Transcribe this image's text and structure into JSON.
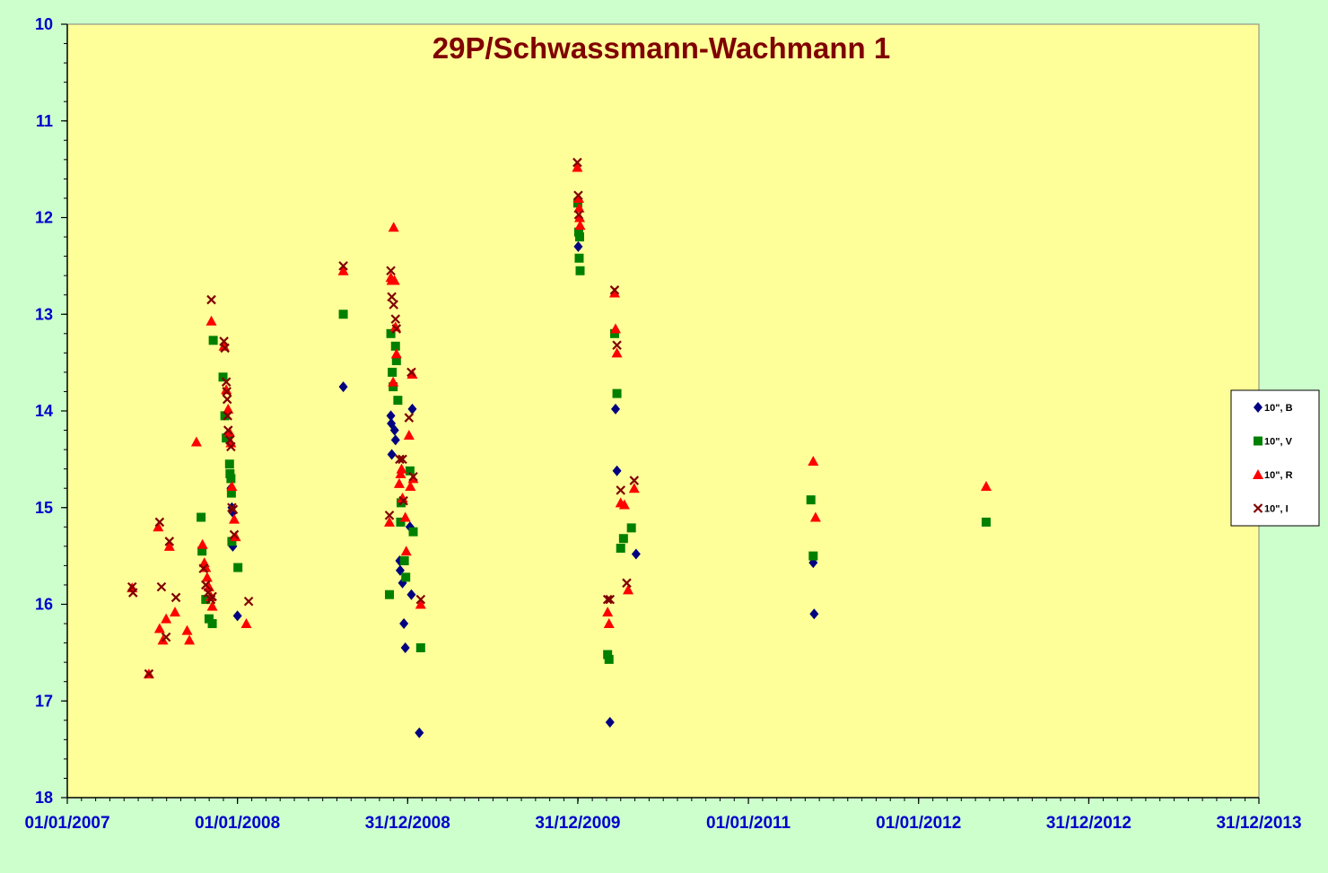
{
  "chart_data": {
    "type": "scatter",
    "title": "29P/Schwassmann-Wachmann 1",
    "xlabel": "",
    "ylabel": "",
    "x_axis": {
      "type": "date",
      "min": "2007-01-01",
      "max": "2013-12-31",
      "tick_labels": [
        "01/01/2007",
        "01/01/2008",
        "31/12/2008",
        "31/12/2009",
        "01/01/2011",
        "01/01/2012",
        "31/12/2012",
        "31/12/2013"
      ],
      "tick_dates": [
        "2007-01-01",
        "2008-01-01",
        "2008-12-31",
        "2009-12-31",
        "2011-01-01",
        "2012-01-01",
        "2012-12-31",
        "2013-12-31"
      ]
    },
    "y_axis": {
      "min": 10,
      "max": 18,
      "reversed": true,
      "tick_labels": [
        "10",
        "11",
        "12",
        "13",
        "14",
        "15",
        "16",
        "17",
        "18"
      ]
    },
    "grid": false,
    "legend_position": "right",
    "colors": {
      "page_background": "#ccffcc",
      "plot_background": "#ffff99",
      "title": "#800000",
      "tick_labels": "#0000cc"
    },
    "series": [
      {
        "name": "10\", B",
        "marker": "diamond",
        "color": "#000080",
        "points": [
          [
            "2007-12-22",
            15.4
          ],
          [
            "2008-01-01",
            16.12
          ],
          [
            "2007-12-16",
            14.25
          ],
          [
            "2007-12-18",
            14.8
          ],
          [
            "2007-12-20",
            15.0
          ],
          [
            "2007-12-22",
            15.05
          ],
          [
            "2008-08-15",
            13.75
          ],
          [
            "2008-11-25",
            14.05
          ],
          [
            "2008-11-26",
            14.13
          ],
          [
            "2008-11-27",
            14.45
          ],
          [
            "2008-12-03",
            14.2
          ],
          [
            "2008-12-05",
            14.3
          ],
          [
            "2008-12-14",
            15.55
          ],
          [
            "2008-12-15",
            15.65
          ],
          [
            "2008-12-20",
            15.78
          ],
          [
            "2008-12-23",
            16.2
          ],
          [
            "2008-12-26",
            16.45
          ],
          [
            "2009-01-05",
            15.2
          ],
          [
            "2009-01-08",
            15.9
          ],
          [
            "2009-01-10",
            13.98
          ],
          [
            "2009-01-25",
            17.33
          ],
          [
            "2010-01-01",
            12.3
          ],
          [
            "2010-03-10",
            17.22
          ],
          [
            "2010-03-22",
            13.98
          ],
          [
            "2010-03-25",
            14.62
          ],
          [
            "2010-05-05",
            15.48
          ],
          [
            "2011-05-20",
            15.57
          ],
          [
            "2011-05-22",
            16.1
          ]
        ]
      },
      {
        "name": "10\", V",
        "marker": "square",
        "color": "#008000",
        "points": [
          [
            "2007-10-15",
            15.1
          ],
          [
            "2007-10-17",
            15.45
          ],
          [
            "2007-10-25",
            15.95
          ],
          [
            "2007-11-01",
            16.15
          ],
          [
            "2007-11-08",
            16.2
          ],
          [
            "2007-11-10",
            13.27
          ],
          [
            "2007-12-01",
            13.65
          ],
          [
            "2007-12-05",
            14.05
          ],
          [
            "2007-12-08",
            14.28
          ],
          [
            "2007-12-15",
            14.55
          ],
          [
            "2007-12-16",
            14.65
          ],
          [
            "2007-12-18",
            14.7
          ],
          [
            "2007-12-19",
            14.85
          ],
          [
            "2007-12-20",
            15.35
          ],
          [
            "2008-01-02",
            15.62
          ],
          [
            "2008-08-15",
            13.0
          ],
          [
            "2008-11-25",
            13.2
          ],
          [
            "2008-11-28",
            13.6
          ],
          [
            "2008-11-30",
            13.75
          ],
          [
            "2008-12-05",
            13.33
          ],
          [
            "2008-12-07",
            13.48
          ],
          [
            "2008-12-10",
            13.89
          ],
          [
            "2008-11-22",
            15.9
          ],
          [
            "2008-12-16",
            15.15
          ],
          [
            "2008-12-17",
            14.95
          ],
          [
            "2008-12-24",
            15.55
          ],
          [
            "2008-12-27",
            15.72
          ],
          [
            "2009-01-05",
            14.62
          ],
          [
            "2009-01-12",
            15.25
          ],
          [
            "2009-01-28",
            16.45
          ],
          [
            "2009-12-31",
            11.85
          ],
          [
            "2010-01-02",
            12.15
          ],
          [
            "2010-01-04",
            12.2
          ],
          [
            "2010-01-03",
            12.42
          ],
          [
            "2010-01-05",
            12.55
          ],
          [
            "2010-03-05",
            16.52
          ],
          [
            "2010-03-08",
            16.57
          ],
          [
            "2010-03-20",
            13.2
          ],
          [
            "2010-03-25",
            13.82
          ],
          [
            "2010-04-02",
            15.42
          ],
          [
            "2010-04-08",
            15.32
          ],
          [
            "2010-04-25",
            15.21
          ],
          [
            "2011-05-15",
            14.92
          ],
          [
            "2011-05-20",
            15.5
          ],
          [
            "2012-05-25",
            15.15
          ]
        ]
      },
      {
        "name": "10\", R",
        "marker": "triangle",
        "color": "#ff0000",
        "points": [
          [
            "2007-05-20",
            15.83
          ],
          [
            "2007-06-25",
            16.72
          ],
          [
            "2007-07-15",
            15.2
          ],
          [
            "2007-07-18",
            16.25
          ],
          [
            "2007-07-25",
            16.37
          ],
          [
            "2007-08-01",
            16.15
          ],
          [
            "2007-08-08",
            15.4
          ],
          [
            "2007-08-20",
            16.08
          ],
          [
            "2007-09-15",
            16.27
          ],
          [
            "2007-09-20",
            16.37
          ],
          [
            "2007-10-05",
            14.32
          ],
          [
            "2007-10-18",
            15.38
          ],
          [
            "2007-10-22",
            15.57
          ],
          [
            "2007-10-25",
            15.62
          ],
          [
            "2007-10-28",
            15.72
          ],
          [
            "2007-11-01",
            15.82
          ],
          [
            "2007-11-05",
            15.92
          ],
          [
            "2007-11-08",
            16.02
          ],
          [
            "2007-11-06",
            13.07
          ],
          [
            "2007-12-03",
            13.33
          ],
          [
            "2007-12-08",
            13.78
          ],
          [
            "2007-12-12",
            13.98
          ],
          [
            "2007-12-15",
            14.22
          ],
          [
            "2007-12-18",
            14.33
          ],
          [
            "2007-12-20",
            14.78
          ],
          [
            "2007-12-25",
            15.12
          ],
          [
            "2007-12-28",
            15.3
          ],
          [
            "2008-01-20",
            16.2
          ],
          [
            "2008-08-15",
            12.55
          ],
          [
            "2008-11-22",
            15.15
          ],
          [
            "2008-11-25",
            12.62
          ],
          [
            "2008-11-27",
            12.65
          ],
          [
            "2008-12-01",
            12.1
          ],
          [
            "2008-12-03",
            12.65
          ],
          [
            "2008-12-05",
            13.13
          ],
          [
            "2008-12-07",
            13.41
          ],
          [
            "2008-11-30",
            13.7
          ],
          [
            "2008-12-13",
            14.75
          ],
          [
            "2008-12-16",
            14.65
          ],
          [
            "2008-12-18",
            14.6
          ],
          [
            "2008-12-20",
            14.9
          ],
          [
            "2008-12-26",
            15.1
          ],
          [
            "2008-12-28",
            15.45
          ],
          [
            "2009-01-03",
            14.25
          ],
          [
            "2009-01-06",
            14.78
          ],
          [
            "2009-01-10",
            13.62
          ],
          [
            "2009-01-12",
            14.7
          ],
          [
            "2009-01-28",
            16.0
          ],
          [
            "2009-12-30",
            11.48
          ],
          [
            "2010-01-02",
            11.8
          ],
          [
            "2010-01-03",
            11.9
          ],
          [
            "2010-01-04",
            12.0
          ],
          [
            "2010-01-05",
            12.08
          ],
          [
            "2010-03-05",
            16.08
          ],
          [
            "2010-03-08",
            16.2
          ],
          [
            "2010-03-20",
            12.78
          ],
          [
            "2010-03-22",
            13.15
          ],
          [
            "2010-03-25",
            13.4
          ],
          [
            "2010-04-02",
            14.95
          ],
          [
            "2010-04-10",
            14.97
          ],
          [
            "2010-04-18",
            15.85
          ],
          [
            "2010-05-01",
            14.8
          ],
          [
            "2011-05-20",
            14.52
          ],
          [
            "2011-05-25",
            15.1
          ],
          [
            "2012-05-25",
            14.78
          ]
        ]
      },
      {
        "name": "10\", I",
        "marker": "x",
        "color": "#800000",
        "points": [
          [
            "2007-05-20",
            15.82
          ],
          [
            "2007-05-22",
            15.88
          ],
          [
            "2007-06-25",
            16.72
          ],
          [
            "2007-07-18",
            15.15
          ],
          [
            "2007-07-22",
            15.82
          ],
          [
            "2007-08-01",
            16.34
          ],
          [
            "2007-08-08",
            15.35
          ],
          [
            "2007-08-22",
            15.93
          ],
          [
            "2007-10-20",
            15.63
          ],
          [
            "2007-10-25",
            15.8
          ],
          [
            "2007-10-30",
            15.88
          ],
          [
            "2007-11-05",
            15.95
          ],
          [
            "2007-11-08",
            15.92
          ],
          [
            "2007-11-06",
            12.85
          ],
          [
            "2007-12-03",
            13.28
          ],
          [
            "2007-12-05",
            13.35
          ],
          [
            "2007-12-08",
            13.7
          ],
          [
            "2007-12-09",
            13.8
          ],
          [
            "2007-12-10",
            13.88
          ],
          [
            "2007-12-11",
            14.05
          ],
          [
            "2007-12-12",
            14.2
          ],
          [
            "2007-12-16",
            14.3
          ],
          [
            "2007-12-18",
            14.37
          ],
          [
            "2007-12-20",
            15.0
          ],
          [
            "2007-12-23",
            15.02
          ],
          [
            "2007-12-25",
            15.28
          ],
          [
            "2008-01-25",
            15.97
          ],
          [
            "2008-08-15",
            12.5
          ],
          [
            "2008-11-22",
            15.08
          ],
          [
            "2008-11-25",
            12.55
          ],
          [
            "2008-11-27",
            12.82
          ],
          [
            "2008-12-01",
            12.9
          ],
          [
            "2008-12-05",
            13.05
          ],
          [
            "2008-12-07",
            13.15
          ],
          [
            "2008-12-14",
            14.5
          ],
          [
            "2008-12-20",
            14.5
          ],
          [
            "2008-12-22",
            14.93
          ],
          [
            "2009-01-03",
            14.07
          ],
          [
            "2009-01-08",
            13.6
          ],
          [
            "2009-01-12",
            14.68
          ],
          [
            "2009-01-28",
            15.95
          ],
          [
            "2009-12-30",
            11.43
          ],
          [
            "2010-01-01",
            11.77
          ],
          [
            "2010-01-02",
            11.97
          ],
          [
            "2010-03-05",
            15.95
          ],
          [
            "2010-03-10",
            15.95
          ],
          [
            "2010-03-20",
            12.75
          ],
          [
            "2010-03-25",
            13.32
          ],
          [
            "2010-04-02",
            14.82
          ],
          [
            "2010-04-15",
            15.78
          ],
          [
            "2010-05-01",
            14.72
          ]
        ]
      }
    ]
  },
  "legend": {
    "items": [
      {
        "label": "10\", B",
        "marker": "diamond",
        "color": "#000080"
      },
      {
        "label": "10\", V",
        "marker": "square",
        "color": "#008000"
      },
      {
        "label": "10\", R",
        "marker": "triangle",
        "color": "#ff0000"
      },
      {
        "label": "10\", I",
        "marker": "x",
        "color": "#800000"
      }
    ]
  }
}
